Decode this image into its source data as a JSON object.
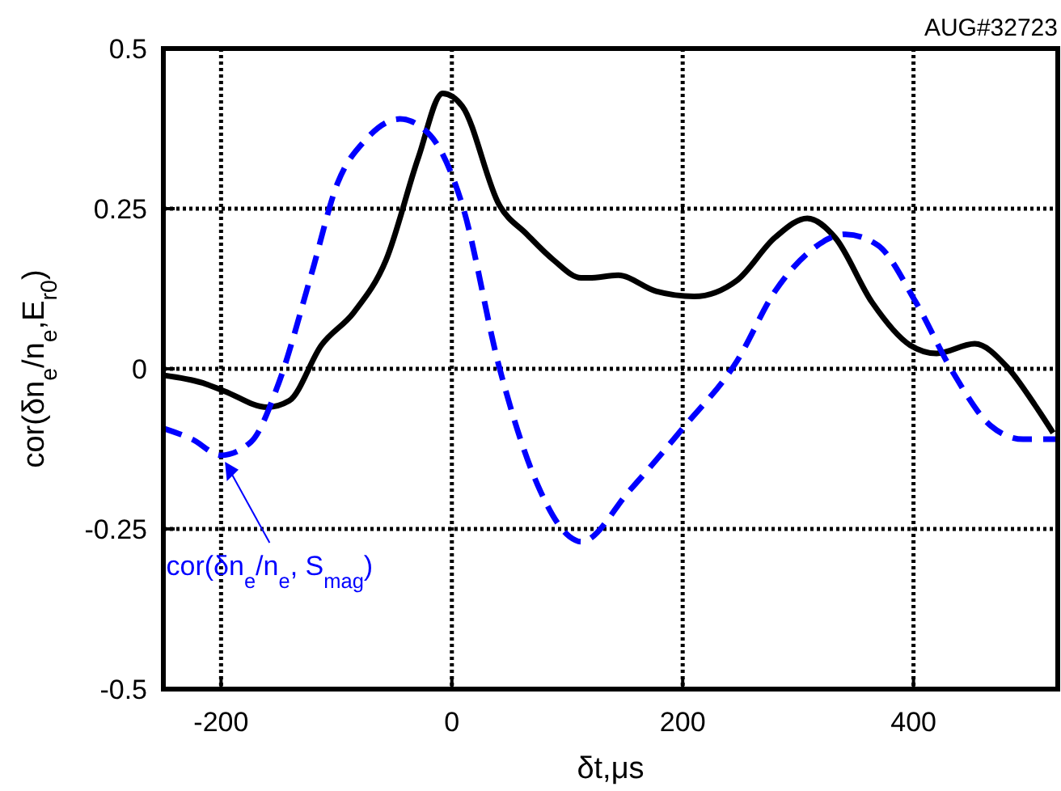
{
  "chart_data": {
    "type": "line",
    "xlabel": "δt,μs",
    "ylabel": "cor(δn$_{e}$/n$_{e}$,E$_{r0}$)",
    "annotations": [
      "AUG#32723"
    ],
    "xlim": [
      -250,
      525
    ],
    "xticks": [
      -200,
      0,
      200,
      400
    ],
    "ylim": [
      -0.5,
      0.5
    ],
    "yticks": [
      -0.5,
      -0.25,
      0,
      0.25,
      0.5
    ],
    "grid": true,
    "marker": "none",
    "series": [
      {
        "color": "#000000",
        "line_style": "solid",
        "x": [
          -250,
          -216,
          -197,
          -160,
          -141,
          -113,
          -85,
          -57,
          -29,
          -8,
          9,
          41,
          65,
          88,
          112,
          119,
          144,
          177,
          210,
          247,
          280,
          308,
          332,
          364,
          397,
          420,
          453,
          481,
          505,
          521
        ],
        "values": [
          -0.01,
          -0.022,
          -0.035,
          -0.06,
          -0.05,
          0.037,
          0.088,
          0.17,
          0.33,
          0.43,
          0.41,
          0.256,
          0.21,
          0.17,
          0.142,
          0.142,
          0.146,
          0.121,
          0.113,
          0.138,
          0.205,
          0.235,
          0.205,
          0.104,
          0.037,
          0.024,
          0.039,
          0.003,
          -0.056,
          -0.1
        ]
      },
      {
        "name": "cor(δn$_{e}$/n$_{e}$, S$_{mag}$)",
        "color": "#0000ff",
        "line_style": "dashed",
        "x": [
          -250,
          -225,
          -200,
          -174,
          -150,
          -122,
          -99,
          -75,
          -45,
          -19,
          9,
          41,
          74,
          102,
          112,
          154,
          200,
          247,
          280,
          308,
          341,
          369,
          402,
          434,
          467,
          495,
          523
        ],
        "values": [
          -0.093,
          -0.11,
          -0.135,
          -0.114,
          -0.022,
          0.146,
          0.29,
          0.357,
          0.39,
          0.365,
          0.256,
          0.003,
          -0.18,
          -0.262,
          -0.27,
          -0.19,
          -0.093,
          0.012,
          0.121,
          0.18,
          0.21,
          0.193,
          0.104,
          -0.005,
          -0.089,
          -0.11,
          -0.11
        ]
      }
    ]
  }
}
